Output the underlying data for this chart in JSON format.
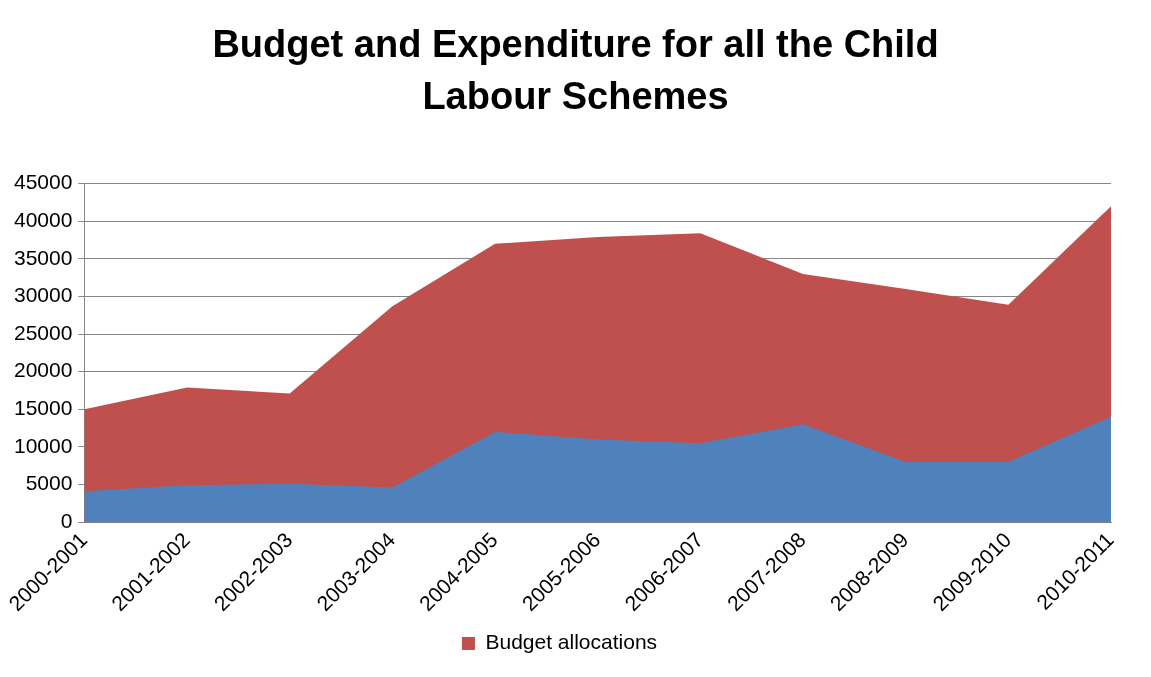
{
  "chart_data": {
    "type": "area",
    "title": "Budget and Expenditure for all the Child Labour Schemes",
    "categories": [
      "2000-2001",
      "2001-2002",
      "2002-2003",
      "2003-2004",
      "2004-2005",
      "2005-2006",
      "2006-2007",
      "2007-2008",
      "2008-2009",
      "2009-2010",
      "2010-2011"
    ],
    "series": [
      {
        "color": "#4f81bd",
        "values": [
          4100,
          4900,
          5100,
          4600,
          12000,
          11000,
          10500,
          13000,
          8000,
          8000,
          14000
        ]
      },
      {
        "name": "Budget allocations",
        "color": "#c0504d",
        "values": [
          15000,
          17900,
          17100,
          28700,
          37000,
          37900,
          38400,
          33000,
          31000,
          28900,
          42000
        ]
      }
    ],
    "ylim": [
      0,
      45000
    ],
    "yticks": [
      0,
      5000,
      10000,
      15000,
      20000,
      25000,
      30000,
      35000,
      40000,
      45000
    ],
    "grid": "y",
    "legend": "bottom"
  }
}
